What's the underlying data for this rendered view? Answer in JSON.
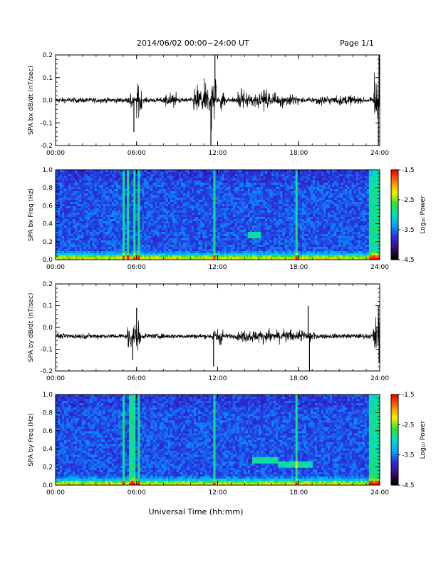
{
  "header": {
    "date_range": "2014/06/02  00:00−24:00 UT",
    "page": "Page 1/1"
  },
  "xaxis": {
    "label": "Universal Time (hh:mm)",
    "ticks": [
      "00:00",
      "06:00",
      "12:00",
      "18:00",
      "24:00"
    ]
  },
  "colorbar": {
    "label": "Log₁₀ Power",
    "ticks": [
      "-1.5",
      "-2.5",
      "-3.5",
      "-4.5"
    ],
    "range": [
      -4.5,
      -1.5
    ],
    "colors": [
      "#000000",
      "#3a0a80",
      "#2a30e0",
      "#00a8ff",
      "#00e0c0",
      "#30e030",
      "#f0f000",
      "#ff8000",
      "#ff0000"
    ]
  },
  "chart_data": [
    {
      "type": "line",
      "ylabel": "SPA bx dB/dt (nT/sec)",
      "xlim": [
        0,
        24
      ],
      "ylim": [
        -0.2,
        0.2
      ],
      "yticks": [
        "0.2",
        "0.1",
        "0.0",
        "-0.1",
        "-0.2"
      ],
      "baseline": 0.0,
      "noise": 0.012,
      "bursts": [
        [
          5.4,
          5.8,
          0.06
        ],
        [
          6.0,
          6.4,
          0.12
        ],
        [
          8.0,
          9.0,
          0.05
        ],
        [
          10.2,
          11.6,
          0.09
        ],
        [
          11.5,
          11.9,
          0.18
        ],
        [
          12.2,
          12.6,
          0.07
        ],
        [
          13.5,
          16.0,
          0.06
        ],
        [
          16.0,
          18.0,
          0.04
        ],
        [
          19.0,
          22.5,
          0.03
        ],
        [
          23.5,
          24.0,
          0.18
        ]
      ],
      "spikes": [
        [
          5.8,
          -0.14
        ],
        [
          11.5,
          -0.2
        ],
        [
          11.8,
          0.2
        ],
        [
          23.9,
          -0.2
        ],
        [
          23.95,
          0.2
        ]
      ]
    },
    {
      "type": "heatmap",
      "ylabel": "SPA bx Freq (Hz)",
      "xlim": [
        0,
        24
      ],
      "ylim": [
        0.0,
        1.0
      ],
      "yticks": [
        "1.0",
        "0.8",
        "0.6",
        "0.4",
        "0.2",
        "0.0"
      ],
      "zlabel": "Log₁₀ Power",
      "zlim": [
        -4.5,
        -1.5
      ],
      "vertical_lines": [
        5.1,
        5.4,
        5.9,
        6.1,
        11.8,
        17.9
      ],
      "features": [
        [
          14.2,
          15.2,
          0.26,
          0.3
        ]
      ]
    },
    {
      "type": "line",
      "ylabel": "SPA by dB/dt (nT/sec)",
      "xlim": [
        0,
        24
      ],
      "ylim": [
        -0.2,
        0.2
      ],
      "yticks": [
        "0.2",
        "0.1",
        "0.0",
        "-0.1",
        "-0.2"
      ],
      "baseline": -0.04,
      "noise": 0.012,
      "bursts": [
        [
          5.3,
          6.3,
          0.08
        ],
        [
          11.6,
          12.4,
          0.05
        ],
        [
          13.4,
          18.5,
          0.04
        ],
        [
          18.5,
          19.2,
          0.05
        ],
        [
          23.5,
          24.0,
          0.12
        ]
      ],
      "spikes": [
        [
          5.7,
          -0.15
        ],
        [
          6.0,
          0.09
        ],
        [
          11.7,
          -0.18
        ],
        [
          18.7,
          0.1
        ],
        [
          18.8,
          -0.2
        ],
        [
          23.9,
          0.1
        ],
        [
          23.95,
          -0.16
        ]
      ]
    },
    {
      "type": "heatmap",
      "ylabel": "SPA by Freq (Hz)",
      "xlim": [
        0,
        24
      ],
      "ylim": [
        0.0,
        1.0
      ],
      "yticks": [
        "1.0",
        "0.8",
        "0.6",
        "0.4",
        "0.2",
        "0.0"
      ],
      "zlabel": "Log₁₀ Power",
      "zlim": [
        -4.5,
        -1.5
      ],
      "vertical_lines": [
        5.0,
        5.6,
        5.9,
        6.1,
        11.8,
        17.9
      ],
      "features": [
        [
          14.5,
          16.5,
          0.26,
          0.3
        ],
        [
          16.5,
          19.0,
          0.2,
          0.24
        ]
      ]
    }
  ]
}
